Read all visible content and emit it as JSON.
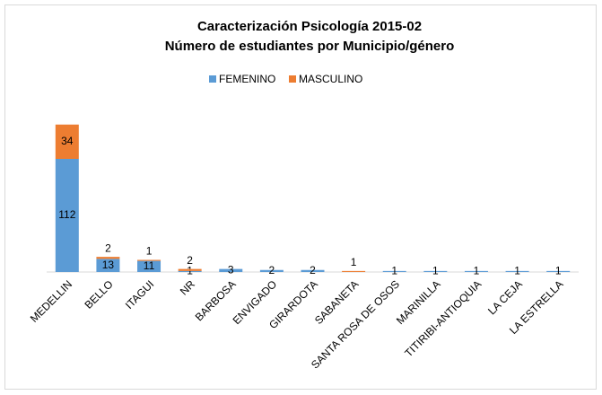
{
  "chart_data": {
    "type": "bar",
    "stacked": true,
    "title": [
      "Caracterización Psicología 2015-02",
      "Número de estudiantes por Municipio/género"
    ],
    "categories": [
      "MEDELLIN",
      "BELLO",
      "ITAGUI",
      "NR",
      "BARBOSA",
      "ENVIGADO",
      "GIRARDOTA",
      "SABANETA",
      "SANTA ROSA DE OSOS",
      "MARINILLA",
      "TITIRIBI-ANTIOQUIA",
      "LA CEJA",
      "LA ESTRELLA"
    ],
    "series": [
      {
        "name": "FEMENINO",
        "color": "#5b9bd5",
        "values": [
          112,
          13,
          11,
          1,
          3,
          2,
          2,
          null,
          1,
          1,
          1,
          1,
          1
        ]
      },
      {
        "name": "MASCULINO",
        "color": "#ed7d31",
        "values": [
          34,
          2,
          1,
          2,
          null,
          null,
          null,
          1,
          null,
          null,
          null,
          null,
          null
        ]
      }
    ],
    "ylim": [
      0,
      160
    ],
    "legend": "top",
    "grid": false
  }
}
